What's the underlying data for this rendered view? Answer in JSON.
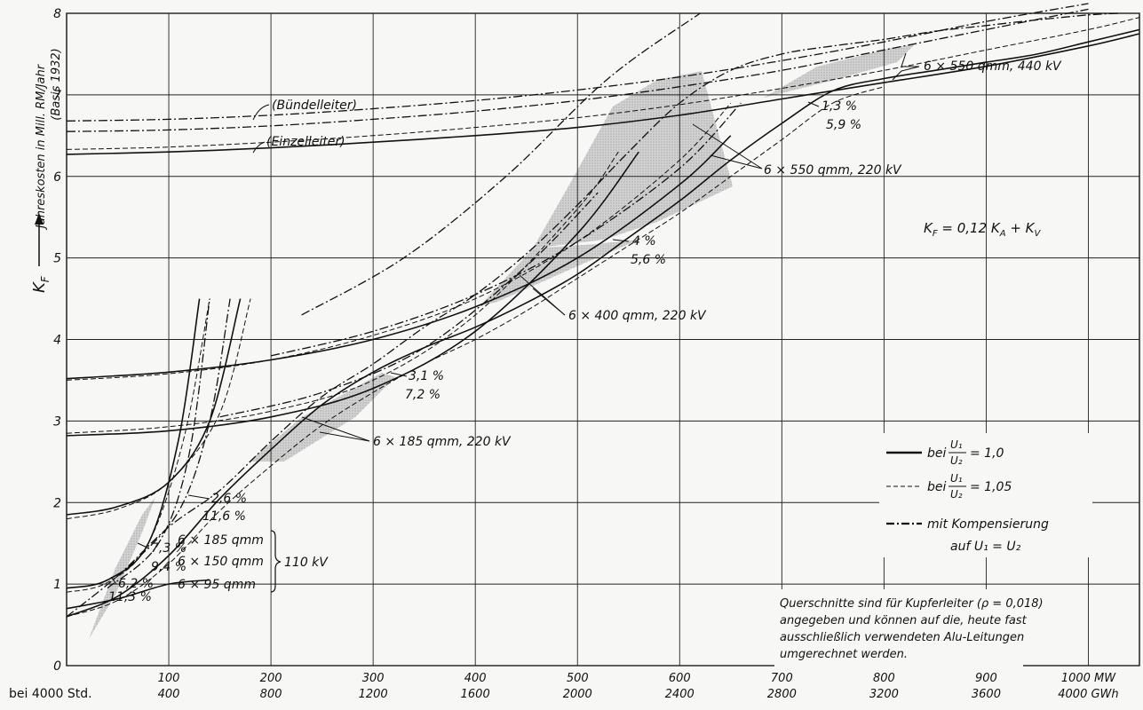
{
  "chart_data": {
    "type": "line",
    "title": "",
    "ylabel": "Jahreskosten in Mill. RM/Jahr",
    "ylabel_sub": "(Basis 1932)",
    "ysymbol": "K",
    "ysymbol_sub": "F",
    "xlabel": "",
    "x_row_prefix": "bei 4000 Std.",
    "xlim": [
      0,
      1050
    ],
    "ylim": [
      0,
      8
    ],
    "grid": true,
    "yticks": [
      {
        "v": 0,
        "label": "0"
      },
      {
        "v": 1,
        "label": "1"
      },
      {
        "v": 2,
        "label": "2"
      },
      {
        "v": 3,
        "label": "3"
      },
      {
        "v": 4,
        "label": "4"
      },
      {
        "v": 5,
        "label": "5"
      },
      {
        "v": 6,
        "label": "6"
      },
      {
        "v": 7,
        "label": "7"
      },
      {
        "v": 8,
        "label": "8"
      }
    ],
    "xticks": [
      {
        "v": 100,
        "mw": "100",
        "gwh": "400"
      },
      {
        "v": 200,
        "mw": "200",
        "gwh": "800"
      },
      {
        "v": 300,
        "mw": "300",
        "gwh": "1200"
      },
      {
        "v": 400,
        "mw": "400",
        "gwh": "1600"
      },
      {
        "v": 500,
        "mw": "500",
        "gwh": "2000"
      },
      {
        "v": 600,
        "mw": "600",
        "gwh": "2400"
      },
      {
        "v": 700,
        "mw": "700",
        "gwh": "2800"
      },
      {
        "v": 800,
        "mw": "800",
        "gwh": "3200"
      },
      {
        "v": 900,
        "mw": "900",
        "gwh": "3600"
      },
      {
        "v": 1000,
        "mw": "1000 MW",
        "gwh": "4000 GWh"
      }
    ],
    "formula": "Kₓ = 0,12 Kₐ + Kᵥ",
    "formula_parts": {
      "lhs": "K",
      "lhs_sub": "F",
      "mid": " = 0,12 K",
      "mid_sub": "A",
      "rhs": " + K",
      "rhs_sub": "V"
    },
    "legend": {
      "placement": "lower-right",
      "entries": [
        {
          "style": "solid",
          "prefix": "bei",
          "num": "U₁",
          "den": "U₂",
          "suffix": "= 1,0"
        },
        {
          "style": "dashed",
          "prefix": "bei",
          "num": "U₁",
          "den": "U₂",
          "suffix": "= 1,05"
        },
        {
          "style": "dashdot",
          "line1": "mit Kompensierung",
          "line2": "auf U₁ = U₂"
        }
      ]
    },
    "note_lines": [
      "Querschnitte sind für Kupferleiter (ρ = 0,018)",
      "angegeben und können auf die, heute fast",
      "ausschließlich verwendeten Alu-Leitungen",
      "umgerechnet werden."
    ],
    "labels": {
      "buendel": "(Bündelleiter)",
      "einzel": "(Einzelleiter)",
      "c550_440": "6 × 550 qmm, 440 kV",
      "c550_220": "6 × 550 qmm, 220 kV",
      "c400_220": "6 × 400 qmm, 220 kV",
      "c185_220": "6 × 185 qmm, 220 kV",
      "c185_110": "6 × 185 qmm",
      "c150_110": "6 × 150 qmm",
      "c95_110": "6 × 95 qmm",
      "kv110": "110 kV",
      "p13": "1,3 %",
      "p59": "5,9 %",
      "p4": "4 %",
      "p56": "5,6 %",
      "p31": "3,1 %",
      "p72": "7,2 %",
      "p26": "2,6 %",
      "p116": "11,6 %",
      "p73": "7,3 %",
      "p94": "9,4 %",
      "p62": "6,2 %",
      "p113": "11,3 %"
    },
    "series": [
      {
        "style": "solid",
        "x": [
          0,
          100,
          200,
          300,
          400,
          500,
          600,
          700,
          800,
          900,
          1000,
          1050
        ],
        "y": [
          6.27,
          6.3,
          6.35,
          6.42,
          6.5,
          6.6,
          6.75,
          6.95,
          7.15,
          7.35,
          7.6,
          7.75
        ]
      },
      {
        "style": "dashed",
        "x": [
          0,
          100,
          200,
          300,
          400,
          500,
          600,
          700,
          800,
          900,
          1000,
          1050
        ],
        "y": [
          6.33,
          6.36,
          6.42,
          6.5,
          6.6,
          6.72,
          6.88,
          7.08,
          7.3,
          7.55,
          7.8,
          7.95
        ]
      },
      {
        "style": "dashdot",
        "x": [
          0,
          100,
          200,
          300,
          400,
          500,
          600,
          700,
          800,
          900,
          1000
        ],
        "y": [
          6.55,
          6.57,
          6.62,
          6.7,
          6.8,
          6.93,
          7.1,
          7.3,
          7.55,
          7.8,
          8.05
        ]
      },
      {
        "style": "dashdot",
        "x": [
          0,
          100,
          200,
          300,
          400,
          500,
          600,
          700,
          800,
          900,
          1000
        ],
        "y": [
          6.68,
          6.7,
          6.75,
          6.83,
          6.93,
          7.06,
          7.22,
          7.42,
          7.65,
          7.9,
          8.12
        ]
      },
      {
        "style": "solid",
        "x": [
          0,
          100,
          200,
          300,
          400,
          500,
          600,
          650
        ],
        "y": [
          3.52,
          3.6,
          3.75,
          4.0,
          4.4,
          5.0,
          5.9,
          6.5
        ]
      },
      {
        "style": "dashed",
        "x": [
          0,
          100,
          200,
          300,
          400,
          500,
          600,
          650
        ],
        "y": [
          3.5,
          3.58,
          3.75,
          4.05,
          4.5,
          5.2,
          6.2,
          6.9
        ]
      },
      {
        "style": "dashdot",
        "x": [
          200,
          300,
          400,
          500,
          600,
          660
        ],
        "y": [
          3.8,
          4.1,
          4.55,
          5.2,
          6.1,
          6.9
        ]
      },
      {
        "style": "solid",
        "x": [
          0,
          100,
          200,
          300,
          400,
          500,
          560
        ],
        "y": [
          2.82,
          2.88,
          3.05,
          3.4,
          4.1,
          5.3,
          6.3
        ]
      },
      {
        "style": "dashed",
        "x": [
          0,
          100,
          200,
          300,
          400,
          500,
          540
        ],
        "y": [
          2.85,
          2.93,
          3.12,
          3.5,
          4.3,
          5.6,
          6.3
        ]
      },
      {
        "style": "dashdot",
        "x": [
          150,
          250,
          350,
          450,
          520
        ],
        "y": [
          3.05,
          3.35,
          3.9,
          4.9,
          5.8
        ]
      },
      {
        "style": "solid",
        "x": [
          0,
          50,
          100,
          140,
          170
        ],
        "y": [
          1.85,
          1.95,
          2.25,
          3.0,
          4.5
        ]
      },
      {
        "style": "dashed",
        "x": [
          0,
          50,
          100,
          150,
          180
        ],
        "y": [
          1.8,
          1.92,
          2.25,
          3.1,
          4.5
        ]
      },
      {
        "style": "solid",
        "x": [
          0,
          40,
          80,
          110,
          130
        ],
        "y": [
          0.95,
          1.05,
          1.5,
          2.8,
          4.5
        ]
      },
      {
        "style": "dashed",
        "x": [
          0,
          40,
          80,
          115,
          140
        ],
        "y": [
          0.9,
          1.02,
          1.5,
          2.8,
          4.5
        ]
      },
      {
        "style": "solid",
        "x": [
          0,
          50,
          100,
          140
        ],
        "y": [
          0.7,
          0.82,
          1.0,
          1.05
        ]
      },
      {
        "style": "solid",
        "x": [
          0,
          50,
          100,
          150,
          200,
          250,
          300,
          350,
          400,
          450,
          500,
          550,
          600,
          650,
          700,
          750,
          800,
          850,
          900,
          950,
          1000,
          1050
        ],
        "y": [
          0.6,
          0.85,
          1.35,
          2.05,
          2.65,
          3.2,
          3.6,
          3.9,
          4.15,
          4.45,
          4.8,
          5.25,
          5.7,
          6.2,
          6.65,
          7.05,
          7.2,
          7.3,
          7.4,
          7.5,
          7.65,
          7.8
        ]
      },
      {
        "style": "dashed",
        "x": [
          0,
          50,
          100,
          150,
          200,
          250,
          300,
          350,
          400,
          450,
          500,
          550,
          600,
          650,
          700,
          750,
          800
        ],
        "y": [
          0.6,
          0.8,
          1.25,
          1.9,
          2.45,
          2.95,
          3.35,
          3.7,
          4.0,
          4.35,
          4.75,
          5.15,
          5.55,
          6.0,
          6.45,
          6.9,
          7.1
        ]
      },
      {
        "style": "dashdot",
        "x": [
          0,
          50,
          100,
          150,
          200,
          250,
          300,
          350,
          400,
          450,
          500,
          550,
          600,
          650,
          700,
          750,
          800,
          850,
          900,
          950,
          1000,
          1030
        ],
        "y": [
          0.6,
          1.1,
          1.7,
          2.15,
          2.75,
          3.3,
          3.7,
          4.15,
          4.55,
          5.05,
          5.65,
          6.3,
          6.9,
          7.3,
          7.5,
          7.6,
          7.68,
          7.78,
          7.85,
          7.92,
          7.98,
          8.0
        ]
      },
      {
        "style": "dashdot",
        "x": [
          40,
          90,
          120,
          140
        ],
        "y": [
          0.95,
          1.5,
          2.6,
          4.5
        ]
      },
      {
        "style": "dashdot",
        "x": [
          60,
          110,
          140,
          160
        ],
        "y": [
          1.2,
          1.9,
          3.0,
          4.5
        ]
      },
      {
        "style": "dashdot",
        "x": [
          230,
          330,
          430,
          530,
          620
        ],
        "y": [
          4.3,
          5.0,
          6.0,
          7.2,
          8.0
        ]
      }
    ]
  }
}
